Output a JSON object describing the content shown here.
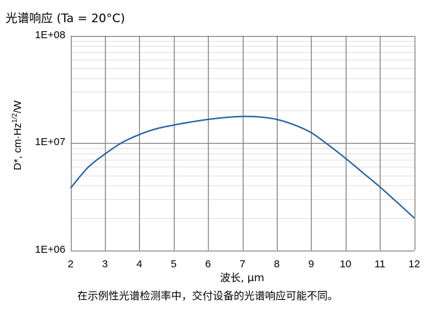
{
  "title": "光谱响应 (Ta = 20°C)",
  "footnote": "在示例性光谱检测率中，交付设备的光谱响应可能不同。",
  "colors": {
    "curve": "#1f5fa6",
    "major_grid": "#7f7f7f",
    "minor_grid": "#e0e0e0"
  },
  "chart_data": {
    "type": "line",
    "title": "光谱响应 (Ta = 20°C)",
    "xlabel": "波长, µm",
    "ylabel": "D*, cm·Hz^1/2/W",
    "ylabel_parts": {
      "main": "D*, cm·Hz",
      "sup": "1/2",
      "tail": "/W"
    },
    "yscale": "log",
    "xlim": [
      2,
      12
    ],
    "ylim": [
      1000000,
      100000000
    ],
    "x_ticks": [
      "2",
      "3",
      "4",
      "5",
      "6",
      "7",
      "8",
      "9",
      "10",
      "11",
      "12"
    ],
    "y_ticks": [
      "1E+06",
      "1E+07",
      "1E+08"
    ],
    "grid": true,
    "legend": null,
    "series": [
      {
        "name": "D*",
        "x": [
          2,
          2.5,
          3,
          3.5,
          4,
          4.5,
          5,
          5.5,
          6,
          6.5,
          7,
          7.5,
          8,
          8.5,
          9,
          9.5,
          10,
          10.5,
          11,
          11.5,
          12
        ],
        "y": [
          3800000,
          5900000,
          7900000,
          10100000,
          12000000,
          13600000,
          14700000,
          15700000,
          16600000,
          17300000,
          17700000,
          17500000,
          16600000,
          14800000,
          12500000,
          9600000,
          7200000,
          5300000,
          3900000,
          2800000,
          2000000
        ]
      }
    ]
  }
}
